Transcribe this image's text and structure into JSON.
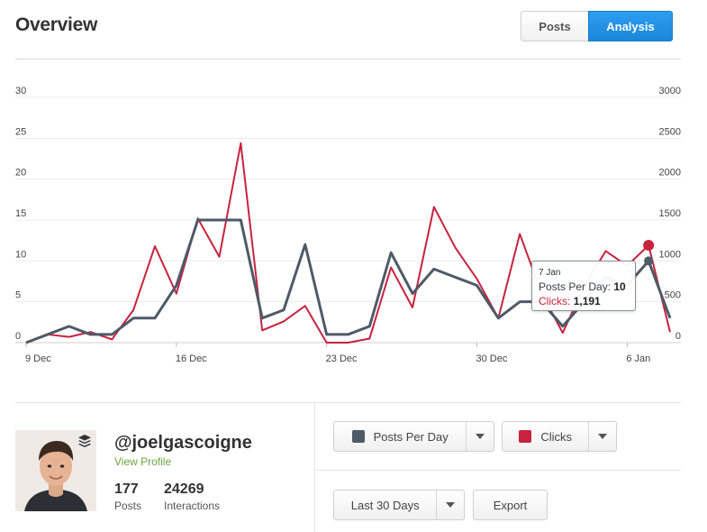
{
  "header": {
    "title": "Overview",
    "tabs": [
      {
        "label": "Posts",
        "active": false
      },
      {
        "label": "Analysis",
        "active": true
      }
    ]
  },
  "colors": {
    "posts_series": "#4e5a67",
    "clicks_series": "#c7233e",
    "accent": "#1f8fe3",
    "link_green": "#6aa53d"
  },
  "chart_data": {
    "type": "line",
    "left_axis": {
      "ticks": [
        "0",
        "5",
        "10",
        "15",
        "20",
        "25",
        "30"
      ],
      "range": [
        0,
        30
      ]
    },
    "right_axis": {
      "ticks": [
        "0",
        "500",
        "1000",
        "1500",
        "2000",
        "2500",
        "3000"
      ],
      "range": [
        0,
        3000
      ]
    },
    "x_tick_labels": [
      "9 Dec",
      "16 Dec",
      "23 Dec",
      "30 Dec",
      "6 Jan"
    ],
    "x": [
      "9 Dec",
      "10 Dec",
      "11 Dec",
      "12 Dec",
      "13 Dec",
      "14 Dec",
      "15 Dec",
      "16 Dec",
      "17 Dec",
      "18 Dec",
      "19 Dec",
      "20 Dec",
      "21 Dec",
      "22 Dec",
      "23 Dec",
      "24 Dec",
      "25 Dec",
      "26 Dec",
      "27 Dec",
      "28 Dec",
      "29 Dec",
      "30 Dec",
      "31 Dec",
      "1 Jan",
      "2 Jan",
      "3 Jan",
      "4 Jan",
      "5 Jan",
      "6 Jan",
      "7 Jan",
      "8 Jan"
    ],
    "grid": true,
    "series": [
      {
        "name": "Posts Per Day",
        "axis": "left",
        "values": [
          0,
          1,
          2,
          1,
          1,
          3,
          3,
          7,
          15,
          15,
          15,
          3,
          4,
          12,
          1,
          1,
          2,
          11,
          6,
          9,
          8,
          7,
          3,
          5,
          5,
          2,
          5,
          8,
          7,
          10,
          3
        ]
      },
      {
        "name": "Clicks",
        "axis": "right",
        "values": [
          0,
          100,
          70,
          130,
          40,
          400,
          1180,
          600,
          1520,
          1050,
          2440,
          150,
          260,
          450,
          0,
          0,
          50,
          920,
          430,
          1660,
          1160,
          780,
          300,
          1330,
          610,
          120,
          690,
          1120,
          940,
          1191,
          130
        ]
      }
    ],
    "tooltip": {
      "date": "7 Jan",
      "posts_label": "Posts Per Day:",
      "posts_value": "10",
      "clicks_label": "Clicks:",
      "clicks_value": "1,191",
      "index": 29
    }
  },
  "profile": {
    "username": "@joelgascoigne",
    "link": "View Profile",
    "stats": [
      {
        "value": "177",
        "label": "Posts"
      },
      {
        "value": "24269",
        "label": "Interactions"
      }
    ]
  },
  "controls": {
    "series1_label": "Posts Per Day",
    "series2_label": "Clicks",
    "range_label": "Last 30 Days",
    "export_label": "Export"
  }
}
